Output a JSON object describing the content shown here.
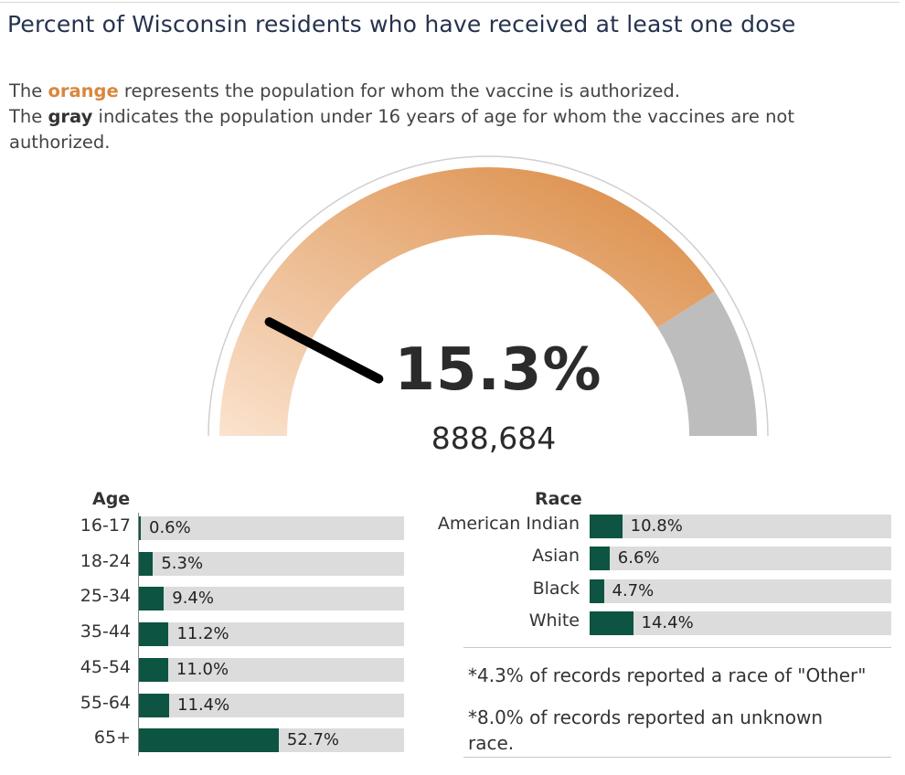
{
  "title": "Percent of Wisconsin residents who have received at least one dose",
  "subtitle": {
    "line1_pre": "The ",
    "line1_emph": "orange",
    "line1_post": " represents the population for whom the vaccine is authorized.",
    "line2_pre": "The ",
    "line2_emph": "gray",
    "line2_post": " indicates the population under 16 years of age for whom the vaccines are not authorized."
  },
  "gauge": {
    "value_label": "15.3%",
    "count_label": "888,684",
    "value_percent": 15.3,
    "authorized_share_percent": 81.9,
    "colors": {
      "orange_light": "#fbe3cf",
      "orange_dark": "#d9873e",
      "gray": "#bdbdbd",
      "needle": "#000000",
      "outline": "#cfcfcf"
    }
  },
  "chart_data": [
    {
      "type": "bar",
      "title": "Age",
      "categories": [
        "16-17",
        "18-24",
        "25-34",
        "35-44",
        "45-54",
        "55-64",
        "65+"
      ],
      "values": [
        0.6,
        5.3,
        9.4,
        11.2,
        11.0,
        11.4,
        52.7
      ],
      "value_labels": [
        "0.6%",
        "5.3%",
        "9.4%",
        "11.2%",
        "11.0%",
        "11.4%",
        "52.7%"
      ],
      "xlim": [
        0,
        100
      ],
      "bar_color": "#0d5442",
      "track_color": "#dcdcdc"
    },
    {
      "type": "bar",
      "title": "Race",
      "categories": [
        "American Indian",
        "Asian",
        "Black",
        "White"
      ],
      "values": [
        10.8,
        6.6,
        4.7,
        14.4
      ],
      "value_labels": [
        "10.8%",
        "6.6%",
        "4.7%",
        "14.4%"
      ],
      "xlim": [
        0,
        100
      ],
      "bar_color": "#0d5442",
      "track_color": "#dcdcdc"
    }
  ],
  "notes": [
    "*4.3% of records reported a race of \"Other\"",
    "*8.0% of records reported an unknown race."
  ]
}
